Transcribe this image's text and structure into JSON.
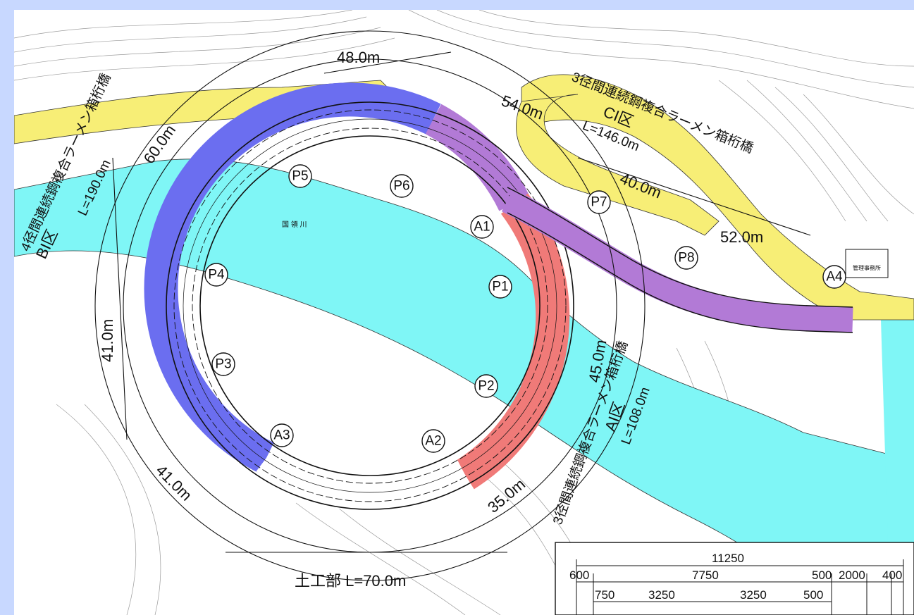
{
  "colors": {
    "background_frame": "#c8d8ff",
    "river": "#7ff6f6",
    "road": "#f7ee76",
    "ring_blue": "#6b6ef0",
    "ring_red": "#f07a78",
    "ring_purple": "#b27ad6",
    "contour": "#9a9a9a"
  },
  "piers": [
    {
      "id": "P1",
      "label": "P1"
    },
    {
      "id": "P2",
      "label": "P2"
    },
    {
      "id": "P3",
      "label": "P3"
    },
    {
      "id": "P4",
      "label": "P4"
    },
    {
      "id": "P5",
      "label": "P5"
    },
    {
      "id": "P6",
      "label": "P6"
    },
    {
      "id": "P7",
      "label": "P7"
    },
    {
      "id": "P8",
      "label": "P8"
    },
    {
      "id": "A1",
      "label": "A1"
    },
    {
      "id": "A2",
      "label": "A2"
    },
    {
      "id": "A3",
      "label": "A3"
    },
    {
      "id": "A4",
      "label": "A4"
    }
  ],
  "dimensions": {
    "d48": "48.0m",
    "d54": "54.0m",
    "d60": "60.0m",
    "d40": "40.0m",
    "d52": "52.0m",
    "d41a": "41.0m",
    "d41b": "41.0m",
    "d45": "45.0m",
    "d35": "35.0m",
    "d70": "土工部 L=70.0m"
  },
  "sections": {
    "bi_name": "BI区",
    "bi_type": "4径間連続鋼複合ラーメン箱桁橋",
    "bi_length": "L=190.0m",
    "ci_name": "CI区",
    "ci_type": "3径間連続鋼複合ラーメン箱桁橋",
    "ci_length": "L=146.0m",
    "ai_name": "AI区",
    "ai_type": "3径間連続鋼複合ラーメン箱桁橋",
    "ai_length": "L=108.0m"
  },
  "cross_section": {
    "total": "11250",
    "left": "600",
    "main": "7750",
    "r1": "500",
    "r2": "2000",
    "r3": "400",
    "s1": "750",
    "s2": "3250",
    "s3": "3250",
    "s4": "500"
  },
  "map_text": {
    "river_name": "国 領 川",
    "office": "管理事務所"
  }
}
